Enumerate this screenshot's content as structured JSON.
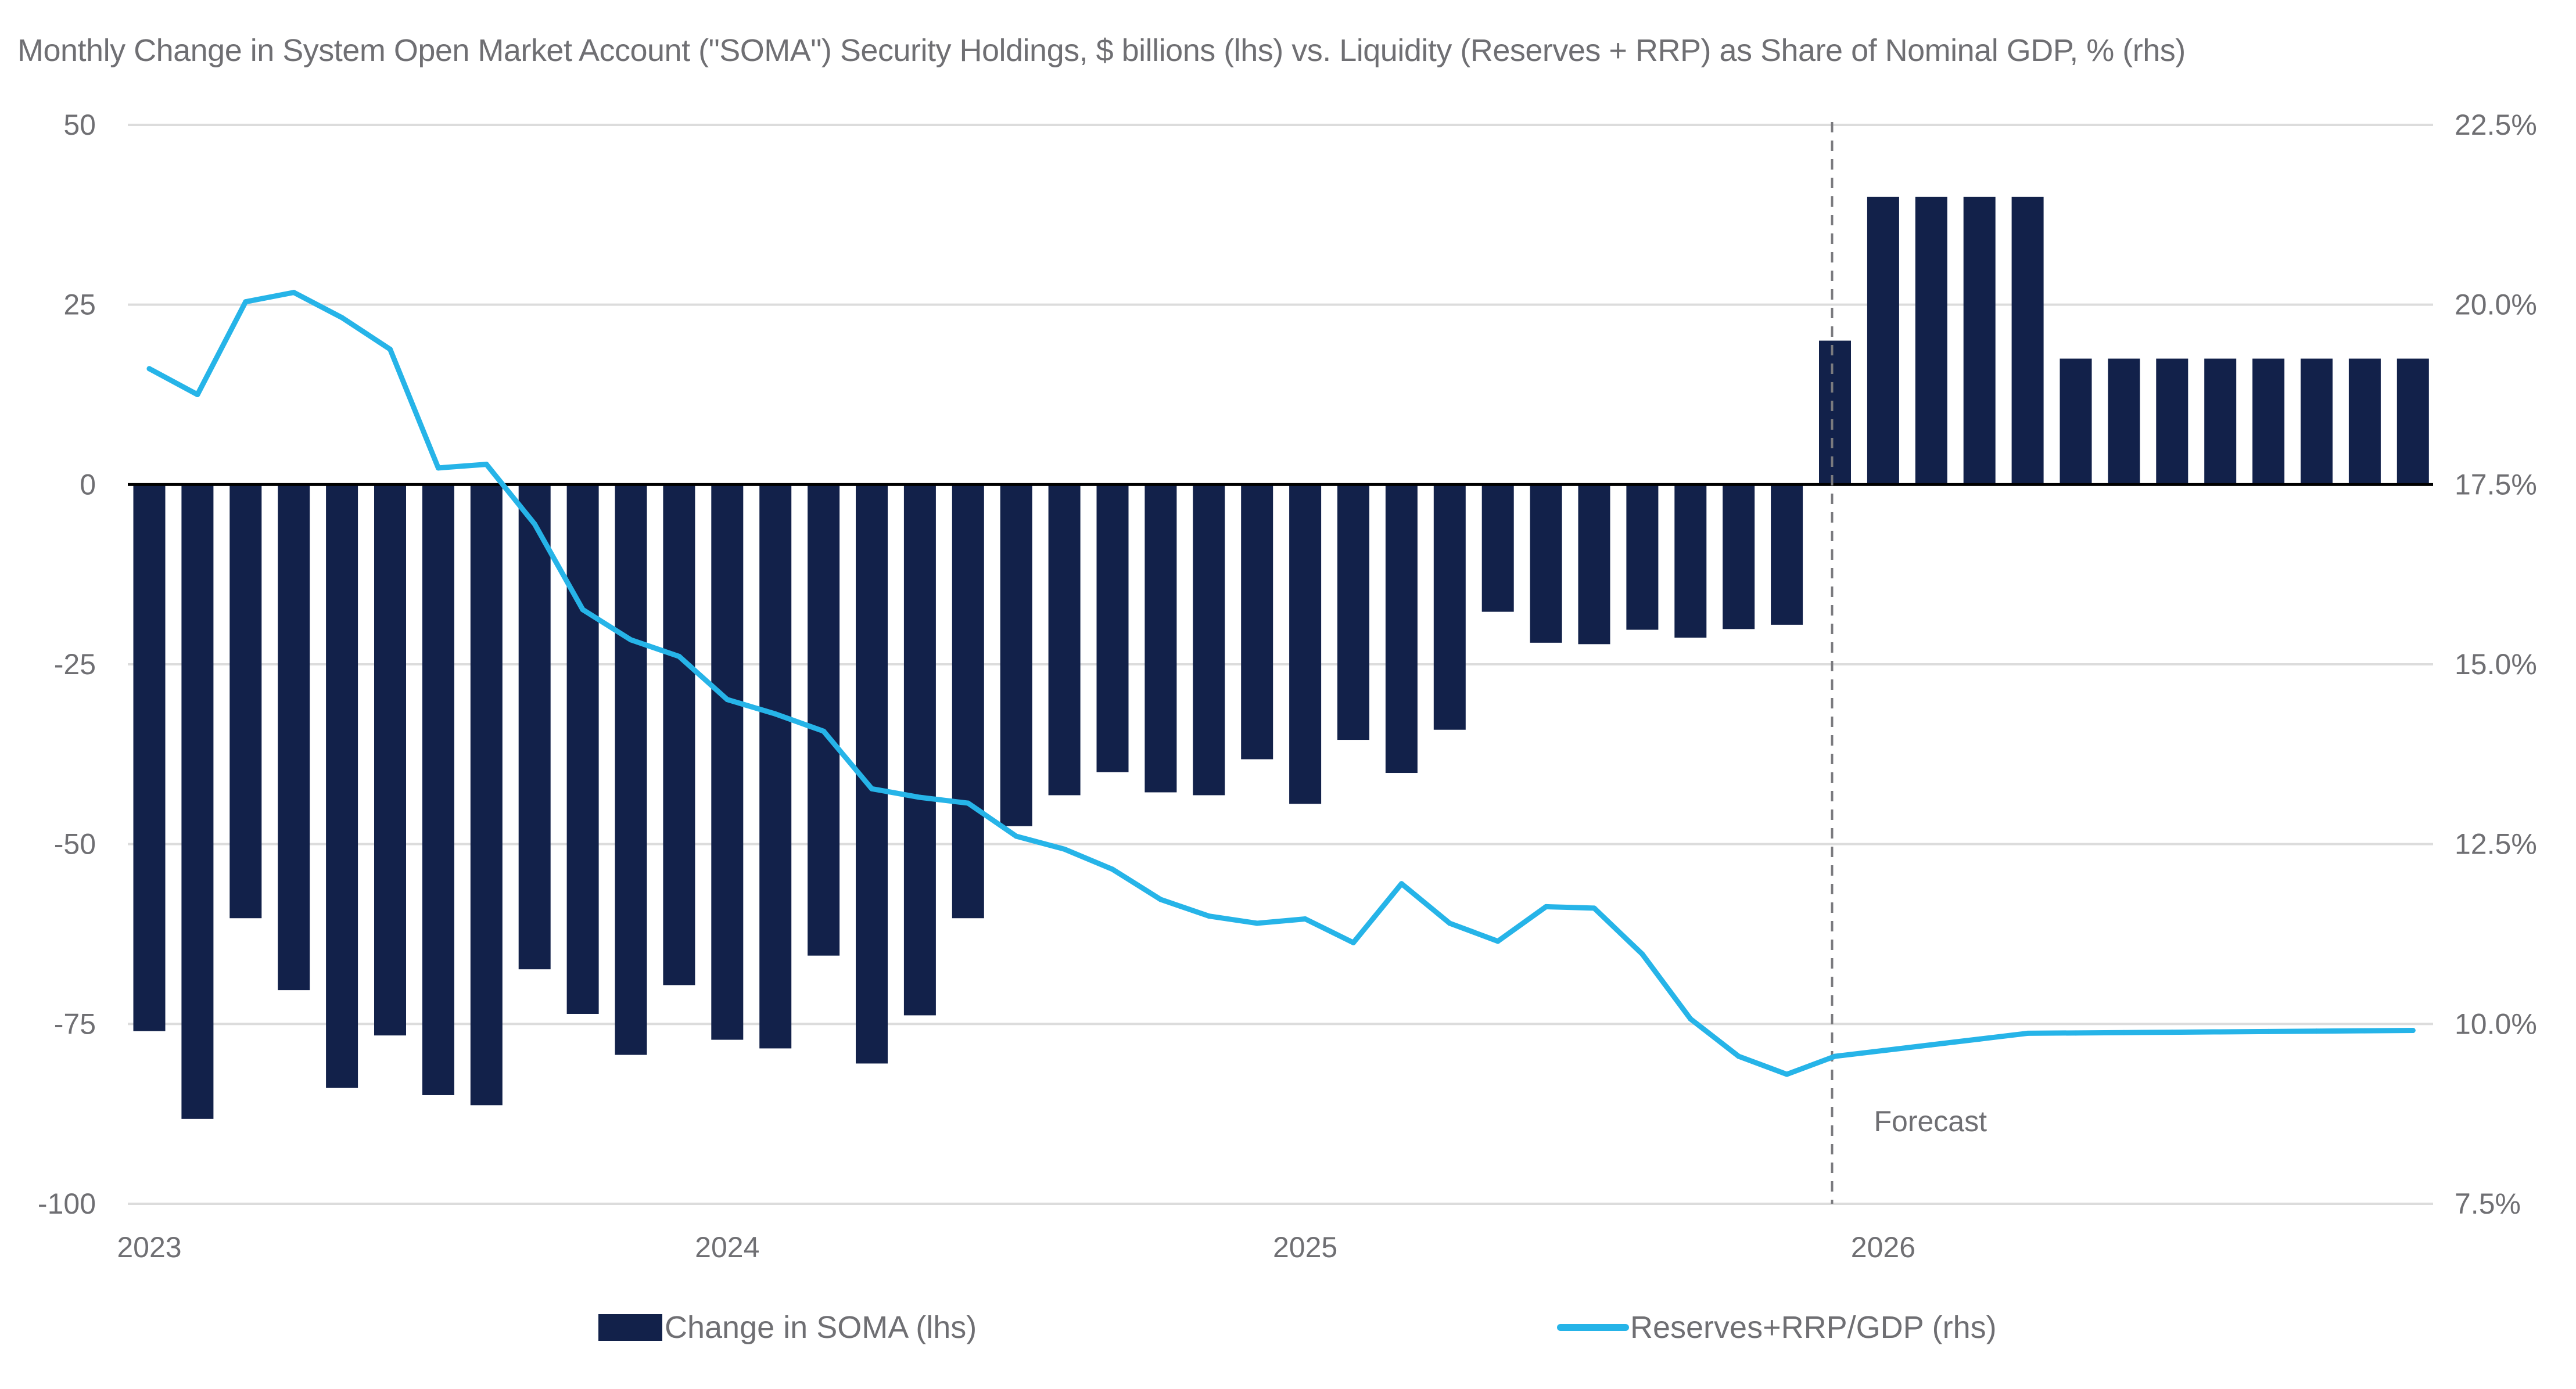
{
  "chart_data": {
    "type": "bar+line",
    "title": "Monthly Change in System Open Market Account (\"SOMA\") Security Holdings, $ billions (lhs) vs. Liquidity (Reserves + RRP) as Share of Nominal GDP, % (rhs)",
    "x_tick_labels": [
      "2023",
      "2024",
      "2025",
      "2026"
    ],
    "x_tick_indices": [
      0,
      12,
      24,
      36
    ],
    "categories": [
      "Jan 2023",
      "Feb 2023",
      "Mar 2023",
      "Apr 2023",
      "May 2023",
      "Jun 2023",
      "Jul 2023",
      "Aug 2023",
      "Sep 2023",
      "Oct 2023",
      "Nov 2023",
      "Dec 2023",
      "Jan 2024",
      "Feb 2024",
      "Mar 2024",
      "Apr 2024",
      "May 2024",
      "Jun 2024",
      "Jul 2024",
      "Aug 2024",
      "Sep 2024",
      "Oct 2024",
      "Nov 2024",
      "Dec 2024",
      "Jan 2025",
      "Feb 2025",
      "Mar 2025",
      "Apr 2025",
      "May 2025",
      "Jun 2025",
      "Jul 2025",
      "Aug 2025",
      "Sep 2025",
      "Oct 2025",
      "Nov 2025",
      "Dec 2025",
      "Jan 2026",
      "Feb 2026",
      "Mar 2026",
      "Apr 2026",
      "May 2026",
      "Jun 2026",
      "Jul 2026",
      "Aug 2026",
      "Sep 2026",
      "Oct 2026",
      "Nov 2026",
      "Dec 2026"
    ],
    "left_axis": {
      "label": "$ billions",
      "ylim": [
        -100,
        50
      ],
      "ticks": [
        50,
        25,
        0,
        -25,
        -50,
        -75,
        -100
      ],
      "tick_labels": [
        "50",
        "25",
        "0",
        "-25",
        "-50",
        "-75",
        "-100"
      ]
    },
    "right_axis": {
      "label": "% of nominal GDP",
      "ylim": [
        7.5,
        22.5
      ],
      "ticks": [
        22.5,
        20.0,
        17.5,
        15.0,
        12.5,
        10.0,
        7.5
      ],
      "tick_labels": [
        "22.5%",
        "20.0%",
        "17.5%",
        "15.0%",
        "12.5%",
        "10.0%",
        "7.5%"
      ]
    },
    "grid": true,
    "series": [
      {
        "name": "Change in SOMA (lhs)",
        "type": "bar",
        "axis": "left",
        "color": "#12214a",
        "values": [
          -76.0,
          -88.2,
          -60.3,
          -70.3,
          -83.9,
          -76.6,
          -84.9,
          -86.3,
          -67.4,
          -73.6,
          -79.3,
          -69.6,
          -77.2,
          -78.4,
          -65.5,
          -80.5,
          -73.8,
          -60.3,
          -47.5,
          -43.2,
          -40.0,
          -42.8,
          -43.2,
          -38.2,
          -44.4,
          -35.5,
          -40.1,
          -34.1,
          -17.7,
          -22.0,
          -22.2,
          -20.2,
          -21.3,
          -20.1,
          -19.5,
          20.0,
          40.0,
          40.0,
          40.0,
          40.0,
          17.5,
          17.5,
          17.5,
          17.5,
          17.5,
          17.5,
          17.5,
          17.5
        ]
      },
      {
        "name": "Reserves+RRP/GDP (rhs)",
        "type": "line",
        "axis": "right",
        "color": "#26b4e8",
        "values": [
          19.11,
          18.75,
          20.04,
          20.17,
          19.82,
          19.38,
          17.73,
          17.78,
          16.95,
          15.76,
          15.34,
          15.11,
          14.51,
          14.31,
          14.07,
          13.27,
          13.15,
          13.07,
          12.61,
          12.43,
          12.15,
          11.73,
          11.5,
          11.4,
          11.46,
          11.13,
          11.95,
          11.4,
          11.15,
          11.63,
          11.61,
          10.97,
          10.07,
          9.55,
          9.3,
          9.55,
          9.63,
          9.71,
          9.79,
          9.87,
          9.875,
          9.88,
          9.885,
          9.89,
          9.895,
          9.9,
          9.905,
          9.91
        ]
      }
    ],
    "annotations": [
      {
        "text": "Forecast",
        "at_index": 35,
        "style": "dashed-vertical-line"
      }
    ],
    "legend": {
      "placement": "bottom",
      "entries": [
        "Change in SOMA (lhs)",
        "Reserves+RRP/GDP (rhs)"
      ]
    }
  }
}
